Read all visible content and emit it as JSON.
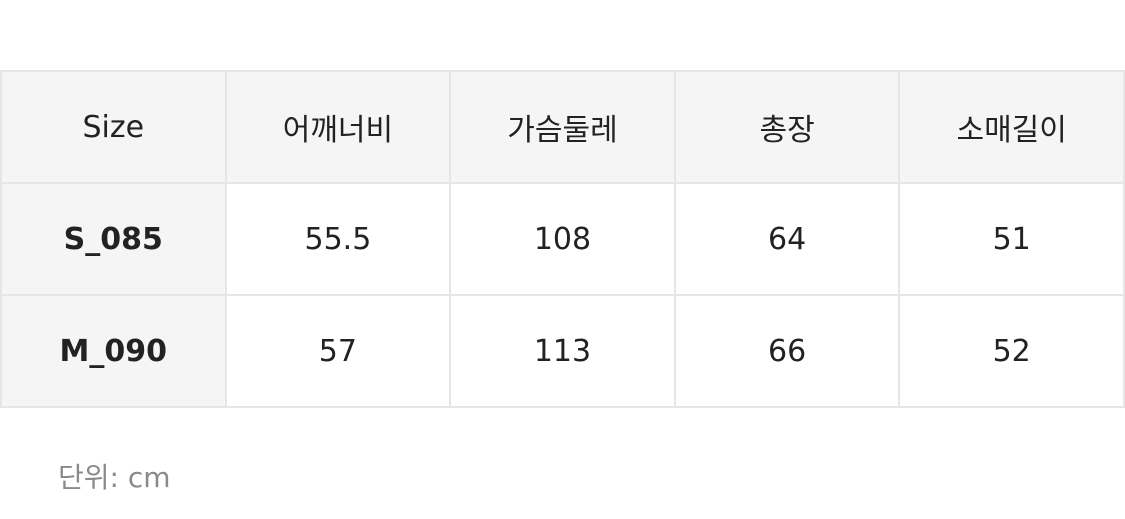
{
  "table": {
    "headers": [
      "Size",
      "어깨너비",
      "가슴둘레",
      "총장",
      "소매길이"
    ],
    "rows": [
      [
        "S_085",
        "55.5",
        "108",
        "64",
        "51"
      ],
      [
        "M_090",
        "57",
        "113",
        "66",
        "52"
      ]
    ]
  },
  "note": "단위: cm"
}
